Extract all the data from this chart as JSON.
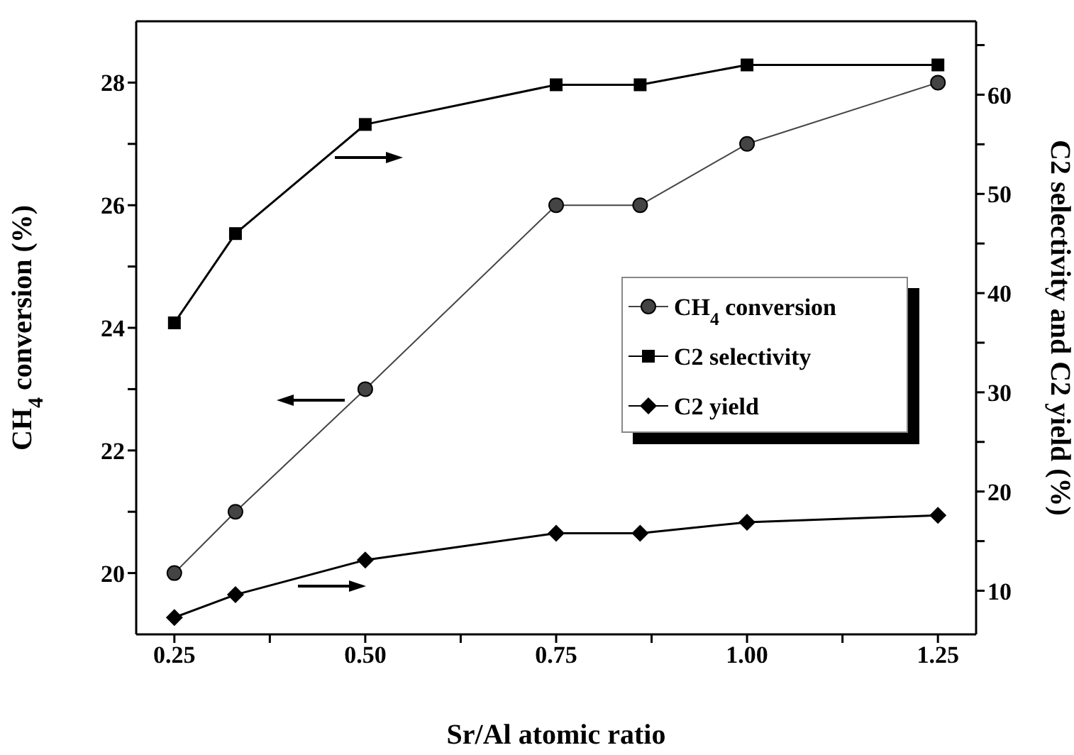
{
  "chart_data": {
    "type": "line",
    "xlabel": "Sr/Al atomic ratio",
    "ylabel": "CH$_{4}$ conversion (%)",
    "y2label": "C2 selectivity and C2 yield (%)",
    "x": [
      0.25,
      0.33,
      0.5,
      0.75,
      0.86,
      1.0,
      1.25
    ],
    "xlim": [
      0.2,
      1.3
    ],
    "xticks": [
      0.25,
      {
        "value": 0.375,
        "label": null
      },
      "0.50",
      {
        "value": 0.625,
        "label": null
      },
      0.75,
      {
        "value": 0.875,
        "label": null
      },
      "1.00",
      {
        "value": 1.125,
        "label": null
      },
      1.25
    ],
    "ylim": [
      19,
      29
    ],
    "yticks": [
      20,
      {
        "value": 21,
        "label": null
      },
      22,
      {
        "value": 23,
        "label": null
      },
      24,
      {
        "value": 25,
        "label": null
      },
      26,
      {
        "value": 27,
        "label": null
      },
      28
    ],
    "y2lim": [
      5.6,
      67.4
    ],
    "y2ticks": [
      10,
      {
        "value": 15,
        "label": null
      },
      20,
      {
        "value": 25,
        "label": null
      },
      30,
      {
        "value": 35,
        "label": null
      },
      40,
      {
        "value": 45,
        "label": null
      },
      50,
      {
        "value": 55,
        "label": null
      },
      60,
      {
        "value": 65,
        "label": null
      }
    ],
    "series": [
      {
        "name": "CH$_{4}$ conversion",
        "color": "#444444",
        "marker": "circle",
        "values": [
          20,
          21,
          23,
          26,
          26,
          27,
          28
        ]
      },
      {
        "name": "C2 selectivity",
        "color": "#000000",
        "marker": "square",
        "axis": "y2",
        "values": [
          37,
          46,
          57,
          61,
          61,
          63,
          63
        ]
      },
      {
        "name": "C2 yield",
        "color": "#000000",
        "marker": "diamond",
        "axis": "y2",
        "values": [
          7.3,
          9.6,
          13.1,
          15.8,
          15.8,
          16.9,
          17.6
        ]
      }
    ],
    "legend": "right"
  }
}
